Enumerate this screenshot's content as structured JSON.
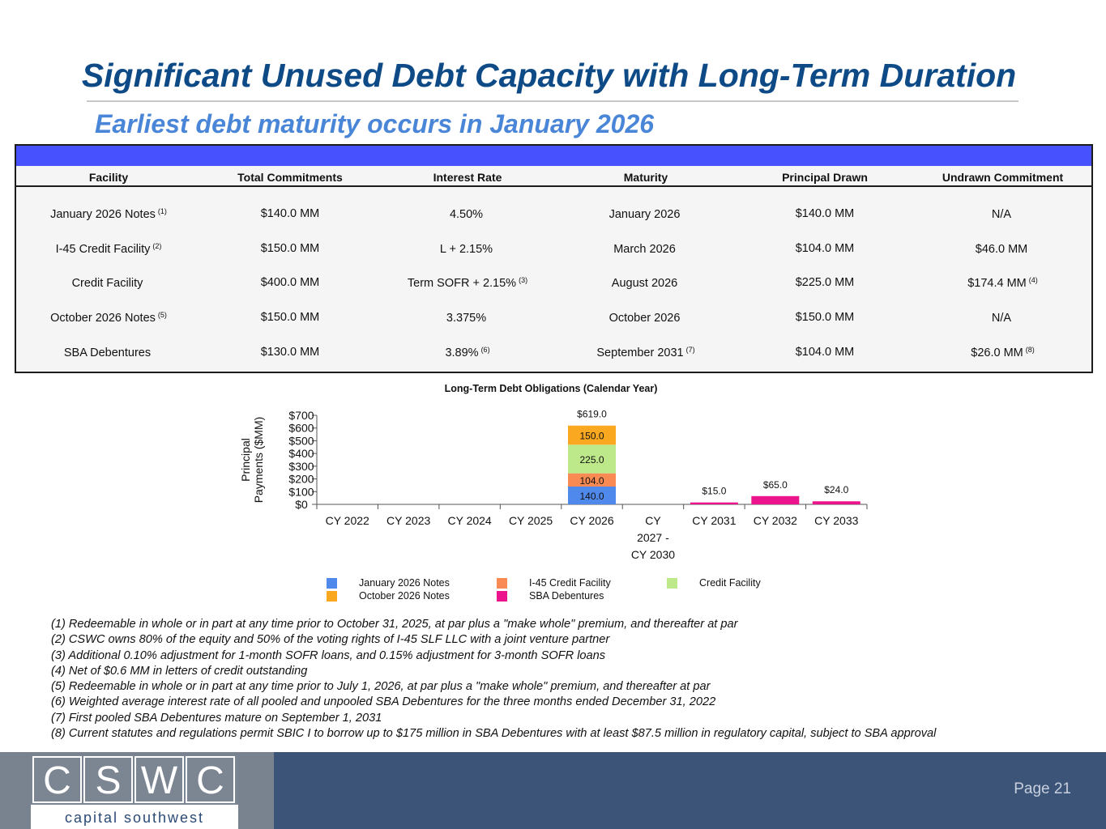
{
  "title": "Significant Unused Debt Capacity with Long-Term Duration",
  "subtitle": "Earliest debt maturity occurs in January 2026",
  "table": {
    "headers": [
      "Facility",
      "Total Commitments",
      "Interest Rate",
      "Maturity",
      "Principal Drawn",
      "Undrawn Commitment"
    ],
    "rows": [
      {
        "facility": "January 2026 Notes",
        "facility_note": "(1)",
        "commitments": "$140.0 MM",
        "rate": "4.50%",
        "rate_note": "",
        "maturity": "January 2026",
        "maturity_note": "",
        "drawn": "$140.0 MM",
        "undrawn": "N/A",
        "undrawn_note": ""
      },
      {
        "facility": "I-45 Credit Facility",
        "facility_note": "(2)",
        "commitments": "$150.0 MM",
        "rate": "L + 2.15%",
        "rate_note": "",
        "maturity": "March 2026",
        "maturity_note": "",
        "drawn": "$104.0 MM",
        "undrawn": "$46.0 MM",
        "undrawn_note": ""
      },
      {
        "facility": "Credit Facility",
        "facility_note": "",
        "commitments": "$400.0 MM",
        "rate": "Term SOFR + 2.15%",
        "rate_note": "(3)",
        "maturity": "August 2026",
        "maturity_note": "",
        "drawn": "$225.0 MM",
        "undrawn": "$174.4 MM",
        "undrawn_note": "(4)"
      },
      {
        "facility": "October 2026 Notes",
        "facility_note": "(5)",
        "commitments": "$150.0 MM",
        "rate": "3.375%",
        "rate_note": "",
        "maturity": "October 2026",
        "maturity_note": "",
        "drawn": "$150.0 MM",
        "undrawn": "N/A",
        "undrawn_note": ""
      },
      {
        "facility": "SBA Debentures",
        "facility_note": "",
        "commitments": "$130.0 MM",
        "rate": "3.89%",
        "rate_note": "(6)",
        "maturity": "September 2031",
        "maturity_note": "(7)",
        "drawn": "$104.0 MM",
        "undrawn": "$26.0 MM",
        "undrawn_note": "(8)"
      }
    ],
    "colors": {
      "band": "#4751fd"
    }
  },
  "chart_data": {
    "type": "bar",
    "stacked": true,
    "title": "Long-Term Debt Obligations (Calendar Year)",
    "ylabel": "Principal Payments ($MM)",
    "xlabel": "",
    "ylim": [
      0,
      700
    ],
    "yticks": [
      "$0",
      "$100",
      "$200",
      "$300",
      "$400",
      "$500",
      "$600",
      "$700"
    ],
    "categories": [
      [
        "CY 2022"
      ],
      [
        "CY 2023"
      ],
      [
        "CY 2024"
      ],
      [
        "CY 2025"
      ],
      [
        "CY 2026"
      ],
      [
        "CY",
        "2027 -",
        "CY 2030"
      ],
      [
        "CY 2031"
      ],
      [
        "CY 2032"
      ],
      [
        "CY 2033"
      ]
    ],
    "series": [
      {
        "name": "January 2026 Notes",
        "color": "#5089ec",
        "values": [
          0,
          0,
          0,
          0,
          140,
          0,
          0,
          0,
          0
        ],
        "labels": [
          "",
          "",
          "",
          "",
          "140.0",
          "",
          "",
          "",
          ""
        ]
      },
      {
        "name": "I-45 Credit Facility",
        "color": "#f98a53",
        "values": [
          0,
          0,
          0,
          0,
          104,
          0,
          0,
          0,
          0
        ],
        "labels": [
          "",
          "",
          "",
          "",
          "104.0",
          "",
          "",
          "",
          ""
        ]
      },
      {
        "name": "Credit Facility",
        "color": "#bde98a",
        "values": [
          0,
          0,
          0,
          0,
          225,
          0,
          0,
          0,
          0
        ],
        "labels": [
          "",
          "",
          "",
          "",
          "225.0",
          "",
          "",
          "",
          ""
        ]
      },
      {
        "name": "October 2026 Notes",
        "color": "#f9a820",
        "values": [
          0,
          0,
          0,
          0,
          150,
          0,
          0,
          0,
          0
        ],
        "labels": [
          "",
          "",
          "",
          "",
          "150.0",
          "",
          "",
          "",
          ""
        ]
      },
      {
        "name": "SBA Debentures",
        "color": "#eb148c",
        "values": [
          0,
          0,
          0,
          0,
          0,
          0,
          15,
          65,
          24
        ],
        "labels": [
          "",
          "",
          "",
          "",
          "",
          "",
          "",
          "",
          ""
        ]
      }
    ],
    "totals": [
      "",
      "",
      "",
      "",
      "$619.0",
      "",
      "$15.0",
      "$65.0",
      "$24.0"
    ],
    "legend": "bottom",
    "grid": false
  },
  "legend_items": [
    {
      "label": "January 2026 Notes",
      "color": "#5089ec"
    },
    {
      "label": "I-45 Credit Facility",
      "color": "#f98a53"
    },
    {
      "label": "Credit Facility",
      "color": "#bde98a"
    },
    {
      "label": "October 2026 Notes",
      "color": "#f9a820"
    },
    {
      "label": "SBA Debentures",
      "color": "#eb148c"
    }
  ],
  "footnotes": [
    "(1) Redeemable in whole or in part at any time prior to October 31, 2025, at par plus a \"make whole\" premium, and thereafter at par",
    "(2) CSWC owns 80% of the equity and 50% of the voting rights of I-45 SLF LLC with a joint venture partner",
    "(3) Additional 0.10% adjustment for 1-month SOFR loans, and 0.15% adjustment for 3-month SOFR loans",
    "(4) Net of $0.6 MM in letters of credit outstanding",
    "(5) Redeemable in whole or in part at any time prior to July 1, 2026, at par plus a \"make whole\" premium, and thereafter at par",
    "(6) Weighted average interest rate of all pooled and unpooled SBA Debentures for the three months ended December 31, 2022",
    "(7) First pooled SBA Debentures mature on September 1, 2031",
    "(8) Current statutes and regulations permit SBIC I to borrow up to $175 million in SBA Debentures with at least $87.5 million in regulatory capital, subject to SBA approval"
  ],
  "footer": {
    "logo_letters": [
      "C",
      "S",
      "W",
      "C"
    ],
    "logo_name": "capital southwest",
    "page": "Page 21",
    "colors": {
      "left": "#79838f",
      "right": "#3b5478"
    }
  }
}
